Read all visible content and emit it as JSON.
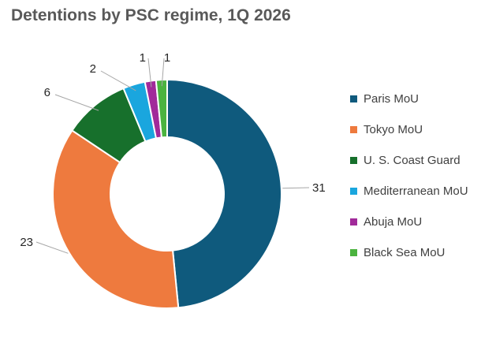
{
  "chart_data": {
    "type": "pie",
    "variant": "doughnut",
    "title": "Detentions by PSC regime, 1Q 2026",
    "categories": [
      "Paris MoU",
      "Tokyo MoU",
      "U. S. Coast Guard",
      "Mediterranean MoU",
      "Abuja MoU",
      "Black Sea MoU"
    ],
    "values": [
      31,
      23,
      6,
      2,
      1,
      1
    ],
    "colors": [
      "#0f5a7d",
      "#ee7a3e",
      "#17702c",
      "#1aa6de",
      "#a12a9a",
      "#4bb33f"
    ],
    "legend": "right",
    "data_labels": true
  }
}
